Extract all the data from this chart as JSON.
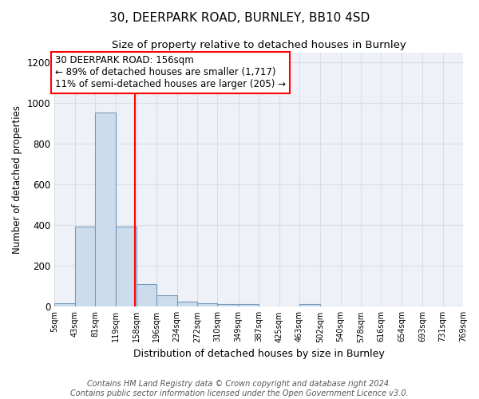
{
  "title1": "30, DEERPARK ROAD, BURNLEY, BB10 4SD",
  "title2": "Size of property relative to detached houses in Burnley",
  "xlabel": "Distribution of detached houses by size in Burnley",
  "ylabel": "Number of detached properties",
  "bin_edges": [
    5,
    43,
    81,
    119,
    158,
    196,
    234,
    272,
    310,
    349,
    387,
    425,
    463,
    502,
    540,
    578,
    616,
    654,
    693,
    731,
    769
  ],
  "bin_labels": [
    "5sqm",
    "43sqm",
    "81sqm",
    "119sqm",
    "158sqm",
    "196sqm",
    "234sqm",
    "272sqm",
    "310sqm",
    "349sqm",
    "387sqm",
    "425sqm",
    "463sqm",
    "502sqm",
    "540sqm",
    "578sqm",
    "616sqm",
    "654sqm",
    "693sqm",
    "731sqm",
    "769sqm"
  ],
  "bar_heights": [
    15,
    395,
    955,
    395,
    110,
    55,
    25,
    15,
    12,
    12,
    0,
    0,
    12,
    0,
    0,
    0,
    0,
    0,
    0,
    0
  ],
  "bar_color": "#ccdcec",
  "bar_edge_color": "#7799bb",
  "grid_color": "#d8dde8",
  "bg_color": "#eef2f8",
  "red_line_x": 156,
  "ylim": [
    0,
    1250
  ],
  "yticks": [
    0,
    200,
    400,
    600,
    800,
    1000,
    1200
  ],
  "annotation_text": "30 DEERPARK ROAD: 156sqm\n← 89% of detached houses are smaller (1,717)\n11% of semi-detached houses are larger (205) →",
  "footer": "Contains HM Land Registry data © Crown copyright and database right 2024.\nContains public sector information licensed under the Open Government Licence v3.0.",
  "title1_fontsize": 11,
  "title2_fontsize": 9.5,
  "annotation_fontsize": 8.5,
  "footer_fontsize": 7,
  "ylabel_fontsize": 8.5,
  "xlabel_fontsize": 9
}
